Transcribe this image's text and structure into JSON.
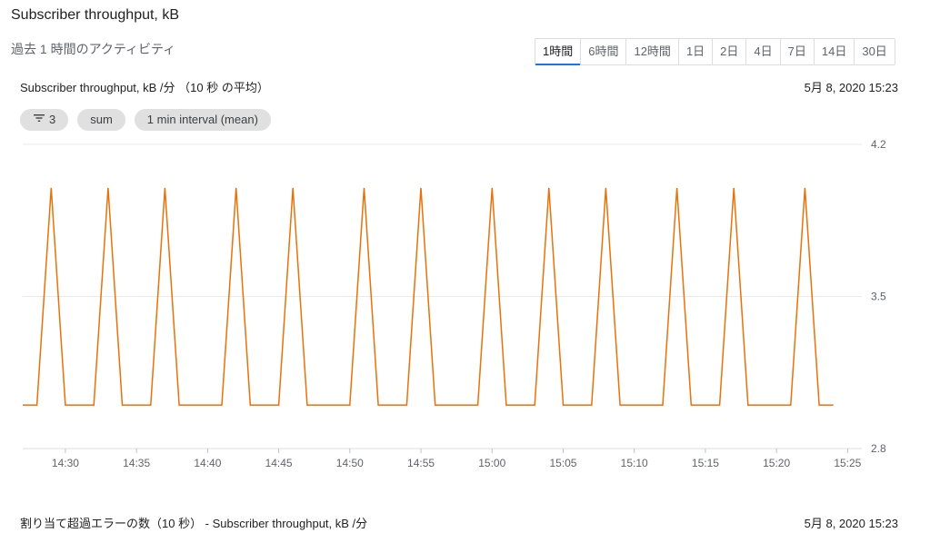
{
  "header": {
    "title": "Subscriber throughput, kB",
    "subtitle": "過去 1 時間のアクティビティ"
  },
  "time_ranges": {
    "selected": "1時間",
    "items": [
      "1時間",
      "6時間",
      "12時間",
      "1日",
      "2日",
      "4日",
      "7日",
      "14日",
      "30日"
    ]
  },
  "chart_panel": {
    "title": "Subscriber throughput, kB /分 （10 秒 の平均）",
    "timestamp": "5月 8, 2020 15:23",
    "chips": {
      "filter_count": "3",
      "aggregation": "sum",
      "interval": "1 min interval (mean)"
    }
  },
  "footer_panel": {
    "title": "割り当て超過エラーの数（10 秒） - Subscriber throughput, kB /分",
    "timestamp": "5月 8, 2020 15:23"
  },
  "colors": {
    "series_line": "#e8710a",
    "grid": "#e8eaed",
    "active_tab": "#1a73e8"
  },
  "chart_data": {
    "type": "line",
    "title": "Subscriber throughput, kB /分 （10 秒 の平均）",
    "x_ticks": [
      "14:30",
      "14:35",
      "14:40",
      "14:45",
      "14:50",
      "14:55",
      "15:00",
      "15:05",
      "15:10",
      "15:15",
      "15:20",
      "15:25"
    ],
    "y_ticks": [
      "4.2",
      "3.5",
      "2.8"
    ],
    "ylim": [
      2.8,
      4.2
    ],
    "xlim": [
      "14:27",
      "15:26"
    ],
    "grid": true,
    "series": [
      {
        "color": "#e8710a",
        "points": [
          [
            "14:27",
            3.0
          ],
          [
            "14:28",
            3.0
          ],
          [
            "14:29",
            4.0
          ],
          [
            "14:30",
            3.0
          ],
          [
            "14:31",
            3.0
          ],
          [
            "14:32",
            3.0
          ],
          [
            "14:33",
            4.0
          ],
          [
            "14:34",
            3.0
          ],
          [
            "14:35",
            3.0
          ],
          [
            "14:36",
            3.0
          ],
          [
            "14:37",
            4.0
          ],
          [
            "14:38",
            3.0
          ],
          [
            "14:39",
            3.0
          ],
          [
            "14:40",
            3.0
          ],
          [
            "14:41",
            3.0
          ],
          [
            "14:42",
            4.0
          ],
          [
            "14:43",
            3.0
          ],
          [
            "14:44",
            3.0
          ],
          [
            "14:45",
            3.0
          ],
          [
            "14:46",
            4.0
          ],
          [
            "14:47",
            3.0
          ],
          [
            "14:48",
            3.0
          ],
          [
            "14:49",
            3.0
          ],
          [
            "14:50",
            3.0
          ],
          [
            "14:51",
            4.0
          ],
          [
            "14:52",
            3.0
          ],
          [
            "14:53",
            3.0
          ],
          [
            "14:54",
            3.0
          ],
          [
            "14:55",
            4.0
          ],
          [
            "14:56",
            3.0
          ],
          [
            "14:57",
            3.0
          ],
          [
            "14:58",
            3.0
          ],
          [
            "14:59",
            3.0
          ],
          [
            "15:00",
            4.0
          ],
          [
            "15:01",
            3.0
          ],
          [
            "15:02",
            3.0
          ],
          [
            "15:03",
            3.0
          ],
          [
            "15:04",
            4.0
          ],
          [
            "15:05",
            3.0
          ],
          [
            "15:06",
            3.0
          ],
          [
            "15:07",
            3.0
          ],
          [
            "15:08",
            4.0
          ],
          [
            "15:09",
            3.0
          ],
          [
            "15:10",
            3.0
          ],
          [
            "15:11",
            3.0
          ],
          [
            "15:12",
            3.0
          ],
          [
            "15:13",
            4.0
          ],
          [
            "15:14",
            3.0
          ],
          [
            "15:15",
            3.0
          ],
          [
            "15:16",
            3.0
          ],
          [
            "15:17",
            4.0
          ],
          [
            "15:18",
            3.0
          ],
          [
            "15:19",
            3.0
          ],
          [
            "15:20",
            3.0
          ],
          [
            "15:21",
            3.0
          ],
          [
            "15:22",
            4.0
          ],
          [
            "15:23",
            3.0
          ],
          [
            "15:24",
            3.0
          ]
        ]
      }
    ]
  }
}
